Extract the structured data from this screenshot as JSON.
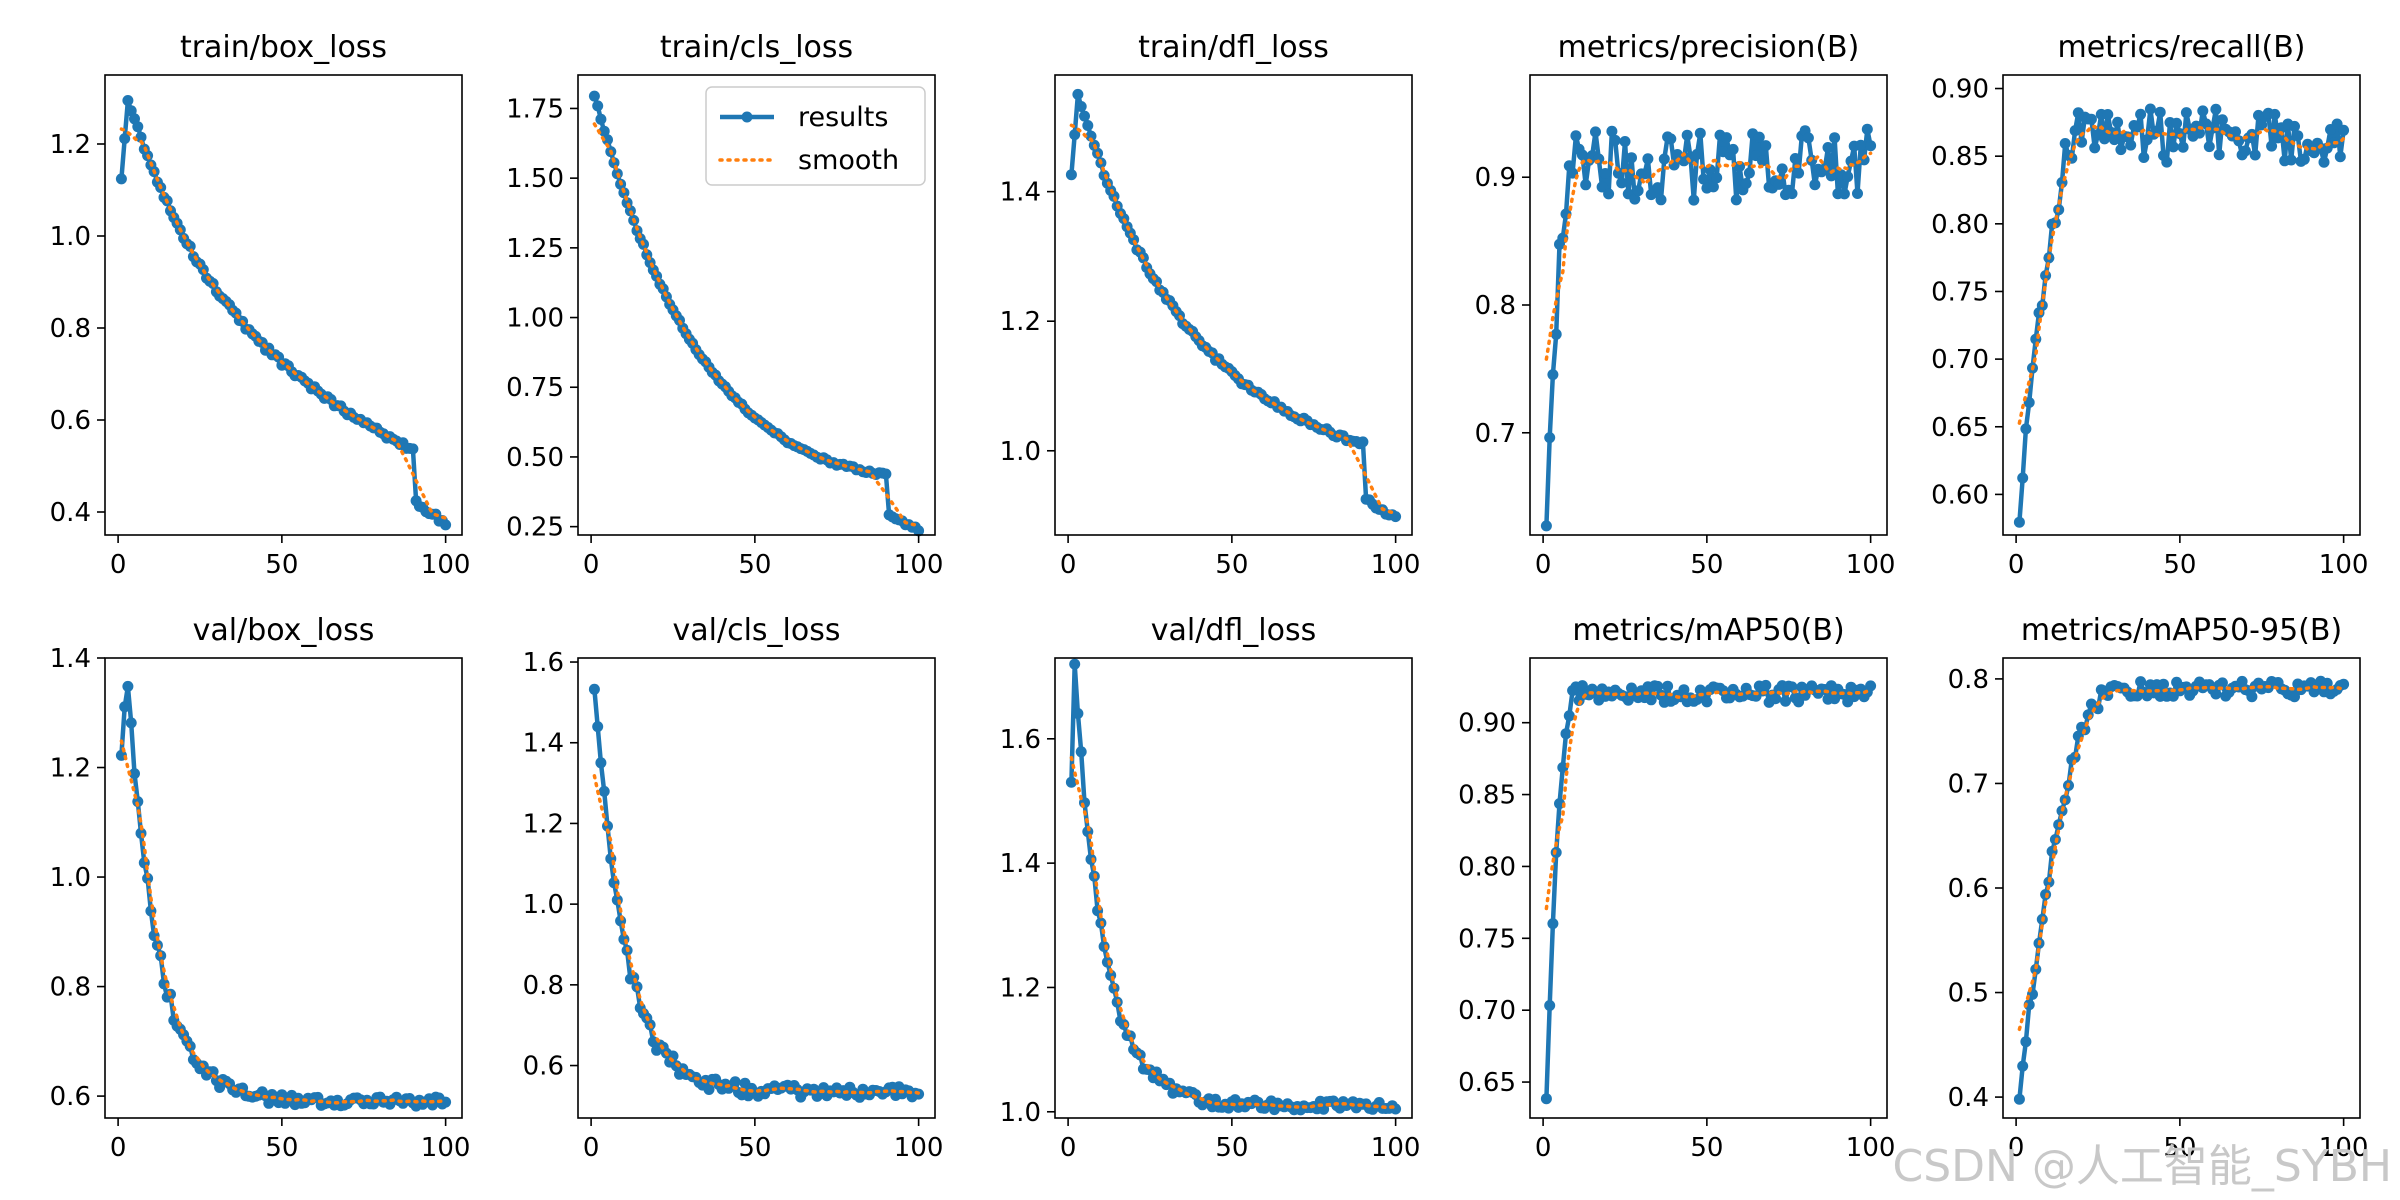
{
  "watermark": "CSDN @人工智能_SYBH",
  "legend": {
    "results_label": "results",
    "smooth_label": "smooth",
    "panel": 1
  },
  "colors": {
    "results": "#1f77b4",
    "smooth": "#ff7f0e",
    "axis": "#000000"
  },
  "chart_data": [
    {
      "type": "line",
      "title": "train/box_loss",
      "xlim": [
        -4,
        105
      ],
      "ylim": [
        0.35,
        1.35
      ],
      "xticks": [
        0,
        50,
        100
      ],
      "yticks": [
        0.4,
        0.6,
        0.8,
        1.0,
        1.2
      ],
      "tick_format": "%.1f",
      "curve": {
        "start": 1.13,
        "mid": 0.725,
        "mid_x": 50,
        "pre_drop": 0.535,
        "end": 0.375,
        "peak": 1.3,
        "peak_x": 3,
        "drop_x": 91,
        "after_drop": 0.42,
        "shape": "loss",
        "noise": 0.006
      }
    },
    {
      "type": "line",
      "title": "train/cls_loss",
      "xlim": [
        -4,
        105
      ],
      "ylim": [
        0.22,
        1.87
      ],
      "xticks": [
        0,
        50,
        100
      ],
      "yticks": [
        0.25,
        0.5,
        0.75,
        1.0,
        1.25,
        1.5,
        1.75
      ],
      "tick_format": "%.2f",
      "curve": {
        "start": 1.8,
        "mid": 0.64,
        "mid_x": 50,
        "pre_drop": 0.435,
        "end": 0.24,
        "peak": 1.8,
        "peak_x": 1,
        "drop_x": 91,
        "after_drop": 0.29,
        "shape": "loss",
        "noise": 0.006
      }
    },
    {
      "type": "line",
      "title": "train/dfl_loss",
      "xlim": [
        -4,
        105
      ],
      "ylim": [
        0.87,
        1.58
      ],
      "xticks": [
        0,
        50,
        100
      ],
      "yticks": [
        1.0,
        1.2,
        1.4
      ],
      "tick_format": "%.1f",
      "curve": {
        "start": 1.43,
        "mid": 1.12,
        "mid_x": 50,
        "pre_drop": 1.01,
        "end": 0.895,
        "peak": 1.55,
        "peak_x": 3,
        "drop_x": 91,
        "after_drop": 0.925,
        "shape": "loss",
        "noise": 0.004
      }
    },
    {
      "type": "line",
      "title": "metrics/precision(B)",
      "xlim": [
        -4,
        105
      ],
      "ylim": [
        0.62,
        0.98
      ],
      "xticks": [
        0,
        50,
        100
      ],
      "yticks": [
        0.7,
        0.8,
        0.9
      ],
      "tick_format": "%.1f",
      "curve": {
        "start": 0.635,
        "plateau": 0.91,
        "rise_x": 10,
        "shape": "metric",
        "noise": 0.028
      }
    },
    {
      "type": "line",
      "title": "metrics/recall(B)",
      "xlim": [
        -4,
        105
      ],
      "ylim": [
        0.57,
        0.91
      ],
      "xticks": [
        0,
        50,
        100
      ],
      "yticks": [
        0.6,
        0.65,
        0.7,
        0.75,
        0.8,
        0.85,
        0.9
      ],
      "tick_format": "%.2f",
      "curve": {
        "start": 0.585,
        "plateau": 0.865,
        "rise_x": 20,
        "shape": "metric",
        "noise": 0.02
      }
    },
    {
      "type": "line",
      "title": "val/box_loss",
      "xlim": [
        -4,
        105
      ],
      "ylim": [
        0.56,
        1.4
      ],
      "xticks": [
        0,
        50,
        100
      ],
      "yticks": [
        0.6,
        0.8,
        1.0,
        1.2,
        1.4
      ],
      "tick_format": "%.1f",
      "curve": {
        "start": 1.24,
        "peak": 1.36,
        "peak_x": 3,
        "tau": 9,
        "end": 0.59,
        "shape": "decay",
        "noise": 0.014
      }
    },
    {
      "type": "line",
      "title": "val/cls_loss",
      "xlim": [
        -4,
        105
      ],
      "ylim": [
        0.47,
        1.61
      ],
      "xticks": [
        0,
        50,
        100
      ],
      "yticks": [
        0.6,
        0.8,
        1.0,
        1.2,
        1.4,
        1.6
      ],
      "tick_format": "%.1f",
      "curve": {
        "start": 1.56,
        "peak": 1.56,
        "peak_x": 1,
        "tau": 9,
        "end": 0.535,
        "shape": "decay",
        "noise": 0.022
      }
    },
    {
      "type": "line",
      "title": "val/dfl_loss",
      "xlim": [
        -4,
        105
      ],
      "ylim": [
        0.99,
        1.73
      ],
      "xticks": [
        0,
        50,
        100
      ],
      "yticks": [
        1.0,
        1.2,
        1.4,
        1.6
      ],
      "tick_format": "%.1f",
      "curve": {
        "start": 1.545,
        "peak": 1.71,
        "peak_x": 2,
        "tau": 9,
        "end": 1.01,
        "shape": "decay",
        "noise": 0.012
      }
    },
    {
      "type": "line",
      "title": "metrics/mAP50(B)",
      "xlim": [
        -4,
        105
      ],
      "ylim": [
        0.625,
        0.945
      ],
      "xticks": [
        0,
        50,
        100
      ],
      "yticks": [
        0.65,
        0.7,
        0.75,
        0.8,
        0.85,
        0.9
      ],
      "tick_format": "%.2f",
      "curve": {
        "start": 0.64,
        "plateau": 0.92,
        "rise_x": 9,
        "shape": "metric",
        "noise": 0.006
      }
    },
    {
      "type": "line",
      "title": "metrics/mAP50-95(B)",
      "xlim": [
        -4,
        105
      ],
      "ylim": [
        0.38,
        0.82
      ],
      "xticks": [
        0,
        50,
        100
      ],
      "yticks": [
        0.4,
        0.5,
        0.6,
        0.7,
        0.8
      ],
      "tick_format": "%.1f",
      "curve": {
        "start": 0.4,
        "plateau": 0.79,
        "rise_x": 30,
        "shape": "metric",
        "noise": 0.008
      }
    }
  ]
}
